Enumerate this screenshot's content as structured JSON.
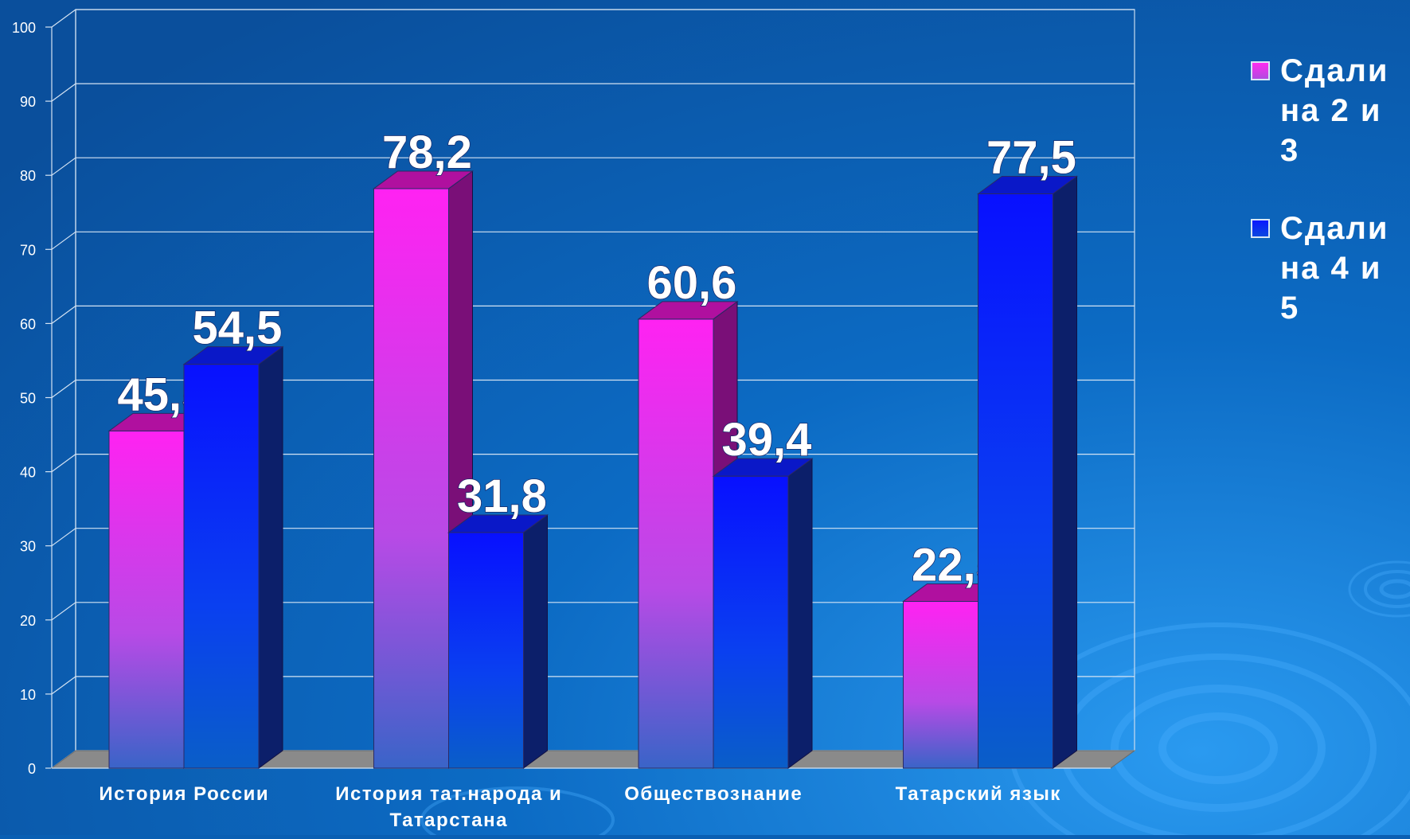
{
  "chart_data": {
    "type": "bar",
    "categories": [
      "История России",
      "История тат.народа и Татарстана",
      "Обществознание",
      "Татарский язык"
    ],
    "series": [
      {
        "name": "Сдали на 2 и 3",
        "values": [
          45.5,
          78.2,
          60.6,
          22.5
        ],
        "labels": [
          "45,5",
          "78,2",
          "60,6",
          "22,5"
        ],
        "color": "#ff2bf0"
      },
      {
        "name": "Сдали на 4 и 5",
        "values": [
          54.5,
          31.8,
          39.4,
          77.5
        ],
        "labels": [
          "54,5",
          "31,8",
          "39,4",
          "77,5"
        ],
        "color": "#0a18ff"
      }
    ],
    "ylim": [
      0,
      100
    ],
    "yticks": [
      "0",
      "10",
      "20",
      "30",
      "40",
      "50",
      "60",
      "70",
      "80",
      "90",
      "100"
    ],
    "grid": true,
    "legend": "right",
    "title": "",
    "xlabel": "",
    "ylabel": ""
  },
  "legend": {
    "item1": "Сдали\nна 2 и 3",
    "item2": "Сдали\nна 4 и 5"
  },
  "colors": {
    "background": "#0a5fb3",
    "series1": "#ff2bf0",
    "series2": "#0a18ff",
    "floor": "#8a8a8a"
  }
}
